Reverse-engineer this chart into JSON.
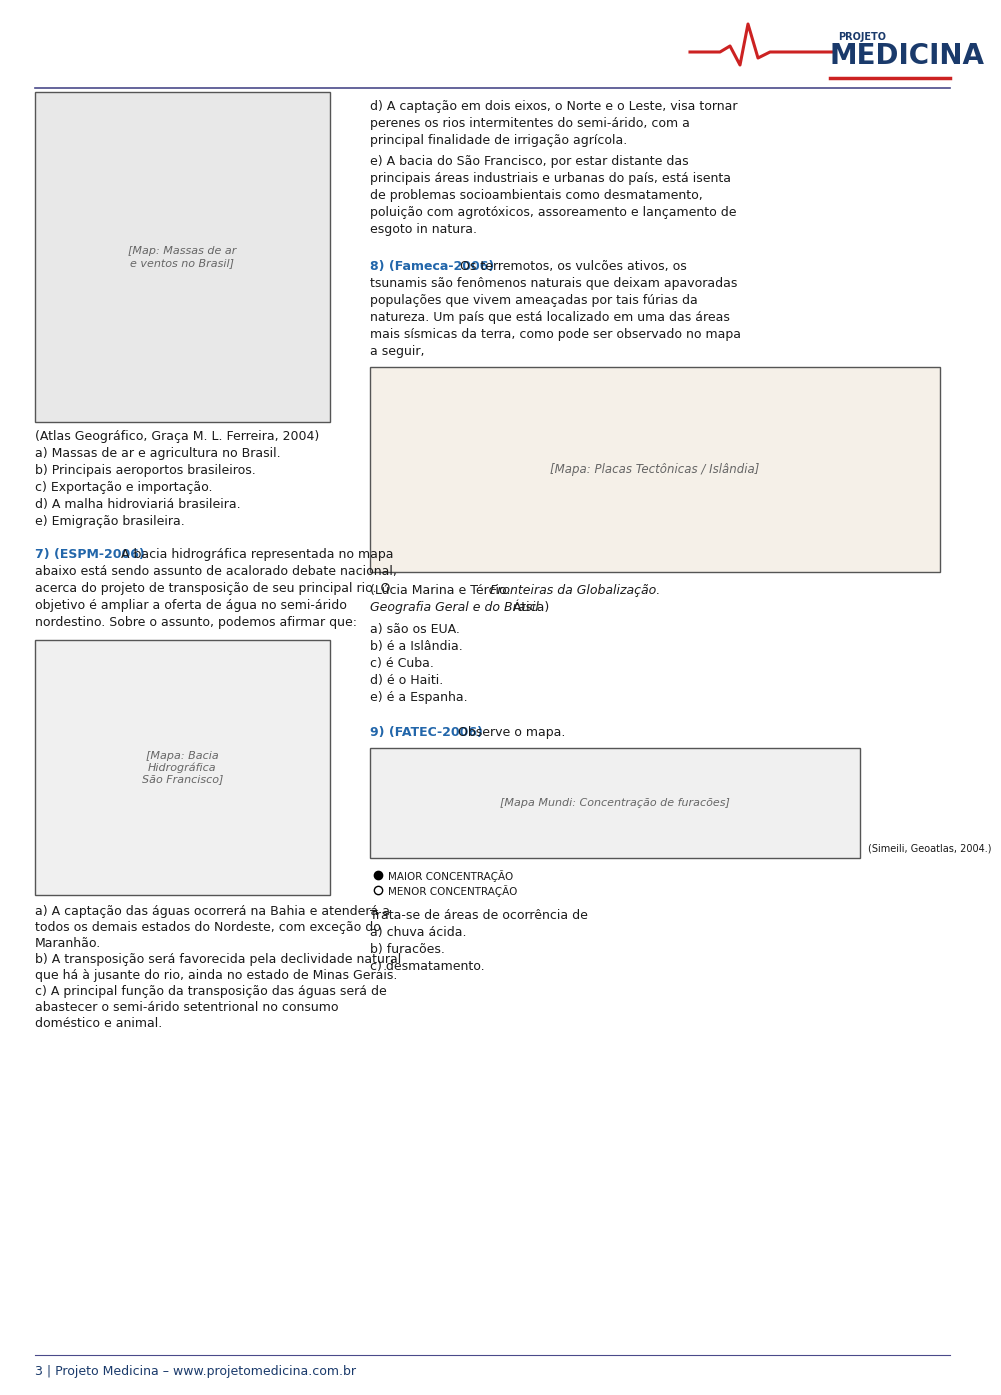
{
  "bg_color": "#ffffff",
  "logo_text_projeto": "PROJETO",
  "logo_text_medicina": "MEDICINA",
  "logo_red": "#cc2222",
  "logo_blue": "#1a3a6b",
  "header_line_color": "#4a4a8a",
  "footer_line_color": "#4a4a8a",
  "footer_text": "3 | Projeto Medicina – www.projetomedicina.com.br",
  "footer_color": "#1a3a6b",
  "map1_caption_lines": [
    "(Atlas Geográfico, Graça M. L. Ferreira, 2004)",
    "a) Massas de ar e agricultura no Brasil.",
    "b) Principais aeroportos brasileiros.",
    "c) Exportação e importação.",
    "d) A malha hidroviariá brasileira.",
    "e) Emigração brasileira."
  ],
  "q7_label": "7) (ESPM-2006)",
  "q7_label_color": "#2266aa",
  "q7_body": " A bacia hidrográfica representada no mapa\nabaixo está sendo assunto de acalorado debate nacional,\nacerca do projeto de transposição de seu principal rio. O\nobjetivo é ampliar a oferta de água no semi-árido\nnordestino. Sobre o assunto, podemos afirmar que:",
  "q7_answers": [
    "a) A captação das águas ocorrerá na Bahia e atenderá a",
    "todos os demais estados do Nordeste, com exceção do",
    "Maranhão.",
    "b) A transposição será favorecida pela declividade natural",
    "que há à jusante do rio, ainda no estado de Minas Gerais.",
    "c) A principal função da transposição das águas será de",
    "abastecer o semi-árido setentrional no consumo",
    "doméstico e animal."
  ],
  "rc_d_lines": [
    "d) A captação em dois eixos, o Norte e o Leste, visa tornar",
    "perenes os rios intermitentes do semi-árido, com a",
    "principal finalidade de irrigação agrícola."
  ],
  "rc_e_lines": [
    "e) A bacia do São Francisco, por estar distante das",
    "principais áreas industriais e urbanas do país, está isenta",
    "de problemas socioambientais como desmatamento,",
    "poluição com agrotóxicos, assoreamento e lançamento de",
    "esgoto in natura."
  ],
  "q8_label": "8) (Fameca-2006)",
  "q8_label_color": "#2266aa",
  "q8_body": " Os terremotos, os vulcões ativos, os\ntsunamis são fenômenos naturais que deixam apavoradas\npopulações que vivem ameaçadas por tais fúrias da\nnatureza. Um país que está localizado em uma das áreas\nmais sísmicas da terra, como pode ser observado no mapa\na seguir,",
  "q8_map_src_normal": "(Lúcia Marina e Tércio. ",
  "q8_map_src_italic1": "Fronteiras da Globalização.",
  "q8_map_src_line2": "Geografia Geral e do Brasil",
  "q8_map_src_normal2": ". Ática)",
  "q8_answers": [
    "a) são os EUA.",
    "b) é a Islândia.",
    "c) é Cuba.",
    "d) é o Haiti.",
    "e) é a Espanha."
  ],
  "q9_label": "9) (FATEC-2006)",
  "q9_label_color": "#2266aa",
  "q9_body": " Observe o mapa.",
  "q9_map_legend1": "MAIOR CONCENTRAÇÃO",
  "q9_map_legend2": "MENOR CONCENTRAÇÃO",
  "q9_map_source": "(Simeili, Geoatlas, 2004.)",
  "q9_intro": "Trata-se de áreas de ocorrência de",
  "q9_answers": [
    "a) chuva ácida.",
    "b) furacões.",
    "c) desmatamento."
  ],
  "text_color": "#1a1a1a",
  "fs": 9.0
}
